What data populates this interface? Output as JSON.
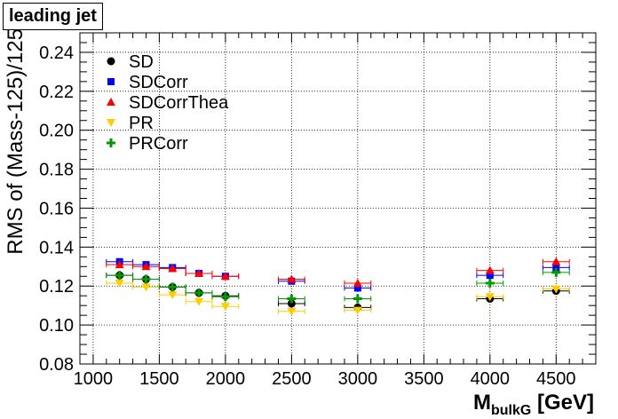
{
  "title": "leading jet",
  "chart_data": {
    "type": "scatter",
    "xlabel": "M",
    "xlabel_sub": "bulkG",
    "xlabel_unit": "[GeV]",
    "ylabel": "RMS of (Mass-125)/125",
    "xlim": [
      900,
      4800
    ],
    "ylim": [
      0.08,
      0.25
    ],
    "xticks": [
      1000,
      1500,
      2000,
      2500,
      3000,
      3500,
      4000,
      4500
    ],
    "xtick_labels": [
      "1000",
      "1500",
      "2000",
      "2500",
      "3000",
      "3500",
      "4000",
      "4500"
    ],
    "yticks": [
      0.08,
      0.1,
      0.12,
      0.14,
      0.16,
      0.18,
      0.2,
      0.22,
      0.24
    ],
    "ytick_labels": [
      "0.08",
      "0.10",
      "0.12",
      "0.14",
      "0.16",
      "0.18",
      "0.20",
      "0.22",
      "0.24"
    ],
    "grid": true,
    "legend_position": "top-left",
    "x": [
      1200,
      1400,
      1600,
      1800,
      2000,
      2500,
      3000,
      4000,
      4500
    ],
    "x_err": 100,
    "series": [
      {
        "name": "SD",
        "marker": "circle",
        "color": "#000000",
        "values": [
          0.1255,
          0.1235,
          0.1195,
          0.1165,
          0.115,
          0.111,
          0.109,
          0.1135,
          0.1175
        ]
      },
      {
        "name": "SDCorr",
        "marker": "square",
        "color": "#0000ff",
        "values": [
          0.1325,
          0.131,
          0.1295,
          0.1265,
          0.125,
          0.1225,
          0.119,
          0.1255,
          0.1295
        ]
      },
      {
        "name": "SDCorrThea",
        "marker": "triangle-up",
        "color": "#ff0000",
        "values": [
          0.131,
          0.13,
          0.129,
          0.1265,
          0.125,
          0.1235,
          0.1215,
          0.128,
          0.1325
        ]
      },
      {
        "name": "PR",
        "marker": "triangle-down",
        "color": "#ffcc00",
        "values": [
          0.1215,
          0.1195,
          0.1155,
          0.112,
          0.1095,
          0.107,
          0.1075,
          0.1145,
          0.1185
        ]
      },
      {
        "name": "PRCorr",
        "marker": "cross",
        "color": "#009900",
        "values": [
          0.1255,
          0.1235,
          0.1195,
          0.1165,
          0.1145,
          0.1135,
          0.1135,
          0.1215,
          0.127
        ]
      }
    ]
  }
}
